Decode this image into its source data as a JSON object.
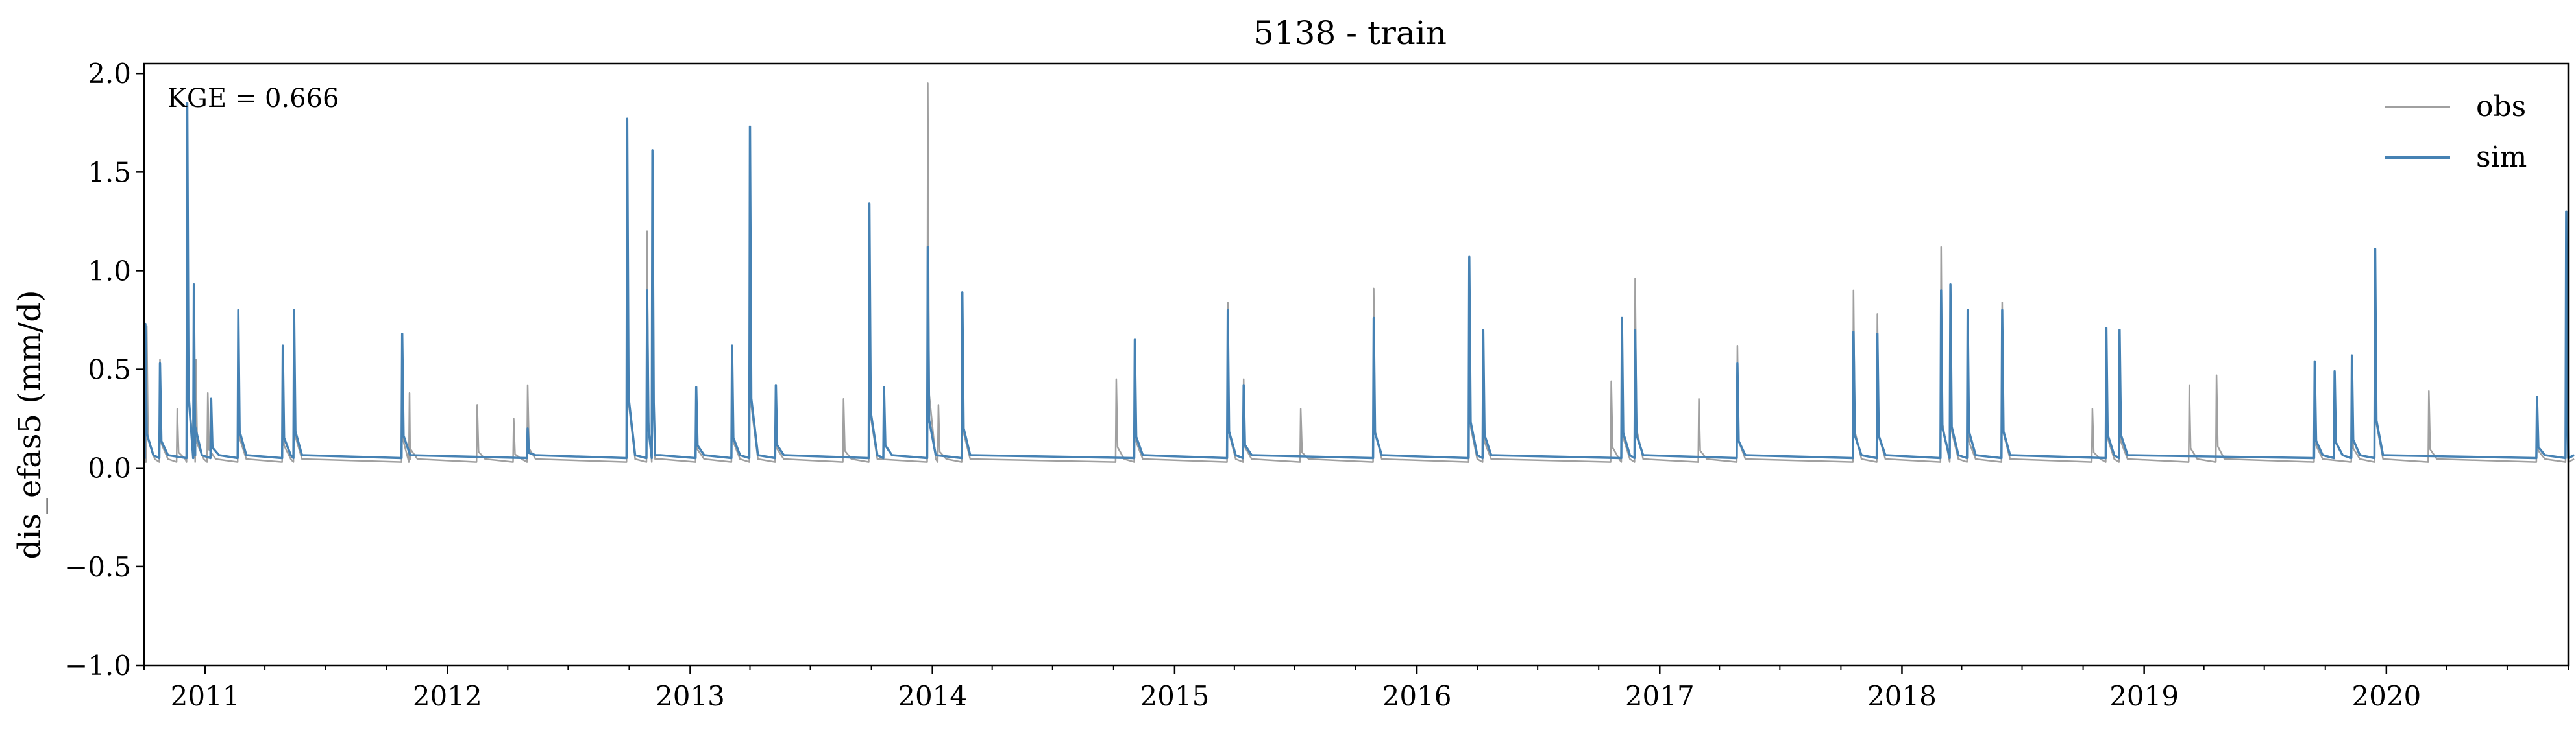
{
  "chart_data": {
    "type": "line",
    "title": "5138 - train",
    "xlabel": "",
    "ylabel": "dis_efas5 (mm/d)",
    "annotation": "KGE = 0.666",
    "xlim": [
      "2010-10-01",
      "2020-10-01"
    ],
    "ylim": [
      -1.0,
      2.05
    ],
    "yticks": [
      -1.0,
      -0.5,
      0.0,
      0.5,
      1.0,
      1.5,
      2.0
    ],
    "ytick_labels": [
      "−1.0",
      "−0.5",
      "0.0",
      "0.5",
      "1.0",
      "1.5",
      "2.0"
    ],
    "xticks": [
      {
        "label": "2011",
        "date": "2011-01-01"
      },
      {
        "label": "2012",
        "date": "2012-01-01"
      },
      {
        "label": "2013",
        "date": "2013-01-01"
      },
      {
        "label": "2014",
        "date": "2014-01-01"
      },
      {
        "label": "2015",
        "date": "2015-01-01"
      },
      {
        "label": "2016",
        "date": "2016-01-01"
      },
      {
        "label": "2017",
        "date": "2017-01-01"
      },
      {
        "label": "2018",
        "date": "2018-01-01"
      },
      {
        "label": "2019",
        "date": "2019-01-01"
      },
      {
        "label": "2020",
        "date": "2020-01-01"
      }
    ],
    "grid": false,
    "legend_position": "top-right",
    "series": [
      {
        "name": "obs",
        "color": "#a0a0a0",
        "baseline": 0.03,
        "points": [
          [
            "2010-10-05",
            0.72
          ],
          [
            "2010-10-25",
            0.55
          ],
          [
            "2010-11-20",
            0.3
          ],
          [
            "2010-12-05",
            1.78
          ],
          [
            "2010-12-18",
            0.55
          ],
          [
            "2011-01-05",
            0.38
          ],
          [
            "2011-02-20",
            0.7
          ],
          [
            "2011-04-28",
            0.5
          ],
          [
            "2011-05-15",
            0.75
          ],
          [
            "2011-10-25",
            0.6
          ],
          [
            "2011-11-05",
            0.38
          ],
          [
            "2012-02-15",
            0.32
          ],
          [
            "2012-04-10",
            0.25
          ],
          [
            "2012-05-01",
            0.42
          ],
          [
            "2012-09-28",
            1.72
          ],
          [
            "2012-10-28",
            1.2
          ],
          [
            "2012-11-05",
            1.6
          ],
          [
            "2013-01-10",
            0.38
          ],
          [
            "2013-03-05",
            0.6
          ],
          [
            "2013-04-01",
            1.62
          ],
          [
            "2013-05-10",
            0.4
          ],
          [
            "2013-08-20",
            0.35
          ],
          [
            "2013-09-28",
            1.3
          ],
          [
            "2013-12-25",
            1.95
          ],
          [
            "2014-01-10",
            0.32
          ],
          [
            "2014-02-15",
            0.85
          ],
          [
            "2014-10-05",
            0.45
          ],
          [
            "2014-11-02",
            0.6
          ],
          [
            "2015-03-22",
            0.84
          ],
          [
            "2015-04-15",
            0.45
          ],
          [
            "2015-07-10",
            0.3
          ],
          [
            "2015-10-28",
            0.91
          ],
          [
            "2016-03-20",
            1.02
          ],
          [
            "2016-04-10",
            0.6
          ],
          [
            "2016-10-20",
            0.44
          ],
          [
            "2016-11-05",
            0.72
          ],
          [
            "2016-11-25",
            0.96
          ],
          [
            "2017-03-01",
            0.35
          ],
          [
            "2017-04-28",
            0.62
          ],
          [
            "2017-10-20",
            0.9
          ],
          [
            "2017-11-25",
            0.78
          ],
          [
            "2018-03-01",
            1.12
          ],
          [
            "2018-03-15",
            0.9
          ],
          [
            "2018-04-10",
            0.6
          ],
          [
            "2018-06-01",
            0.84
          ],
          [
            "2018-10-15",
            0.3
          ],
          [
            "2018-11-05",
            0.7
          ],
          [
            "2018-11-25",
            0.6
          ],
          [
            "2019-03-10",
            0.42
          ],
          [
            "2019-04-20",
            0.47
          ],
          [
            "2019-09-15",
            0.5
          ],
          [
            "2019-11-10",
            0.42
          ],
          [
            "2019-12-15",
            1.1
          ],
          [
            "2020-03-05",
            0.39
          ],
          [
            "2020-08-15",
            0.35
          ],
          [
            "2020-09-28",
            1.3
          ]
        ]
      },
      {
        "name": "sim",
        "color": "#4682b4",
        "baseline": 0.05,
        "points": [
          [
            "2010-10-03",
            0.73
          ],
          [
            "2010-10-25",
            0.53
          ],
          [
            "2010-12-05",
            1.85
          ],
          [
            "2010-12-15",
            0.93
          ],
          [
            "2011-01-10",
            0.35
          ],
          [
            "2011-02-20",
            0.8
          ],
          [
            "2011-04-28",
            0.62
          ],
          [
            "2011-05-15",
            0.8
          ],
          [
            "2011-10-25",
            0.68
          ],
          [
            "2012-05-01",
            0.2
          ],
          [
            "2012-09-28",
            1.77
          ],
          [
            "2012-10-28",
            0.9
          ],
          [
            "2012-11-05",
            1.61
          ],
          [
            "2013-01-10",
            0.41
          ],
          [
            "2013-03-05",
            0.62
          ],
          [
            "2013-04-01",
            1.73
          ],
          [
            "2013-05-10",
            0.42
          ],
          [
            "2013-09-28",
            1.34
          ],
          [
            "2013-10-20",
            0.41
          ],
          [
            "2013-12-25",
            1.12
          ],
          [
            "2014-02-15",
            0.89
          ],
          [
            "2014-11-02",
            0.65
          ],
          [
            "2015-03-22",
            0.8
          ],
          [
            "2015-04-15",
            0.42
          ],
          [
            "2015-10-28",
            0.76
          ],
          [
            "2016-03-20",
            1.07
          ],
          [
            "2016-04-10",
            0.7
          ],
          [
            "2016-11-05",
            0.76
          ],
          [
            "2016-11-25",
            0.7
          ],
          [
            "2017-04-28",
            0.53
          ],
          [
            "2017-10-20",
            0.69
          ],
          [
            "2017-11-25",
            0.68
          ],
          [
            "2018-03-01",
            0.9
          ],
          [
            "2018-03-15",
            0.93
          ],
          [
            "2018-04-10",
            0.8
          ],
          [
            "2018-06-01",
            0.8
          ],
          [
            "2018-11-05",
            0.71
          ],
          [
            "2018-11-25",
            0.7
          ],
          [
            "2019-09-15",
            0.54
          ],
          [
            "2019-10-15",
            0.49
          ],
          [
            "2019-11-10",
            0.57
          ],
          [
            "2019-12-15",
            1.11
          ],
          [
            "2020-08-15",
            0.36
          ],
          [
            "2020-09-28",
            1.3
          ]
        ]
      }
    ]
  }
}
